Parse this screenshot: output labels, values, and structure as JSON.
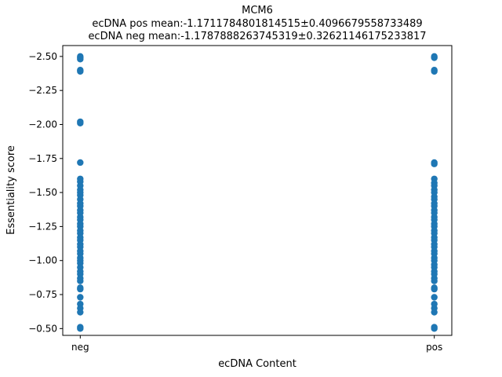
{
  "chart_data": {
    "type": "scatter",
    "title": "MCM6",
    "subtitle_lines": [
      "ecDNA pos mean:-1.1711784801814515±0.4096679558733489",
      "ecDNA neg mean:-1.1787888263745319±0.32621146175233817"
    ],
    "xlabel": "ecDNA Content",
    "ylabel": "Essentiality score",
    "categories": [
      "neg",
      "pos"
    ],
    "ylim": [
      -2.58,
      -0.45
    ],
    "y_inverted": true,
    "yticks": [
      -2.5,
      -2.25,
      -2.0,
      -1.75,
      -1.5,
      -1.25,
      -1.0,
      -0.75,
      -0.5
    ],
    "ytick_labels": [
      "−2.50",
      "−2.25",
      "−2.00",
      "−1.75",
      "−1.50",
      "−1.25",
      "−1.00",
      "−0.75",
      "−0.50"
    ],
    "grid": false,
    "marker_color": "#1f77b4",
    "series": [
      {
        "category": "neg",
        "values": [
          -2.5,
          -2.49,
          -2.48,
          -2.4,
          -2.39,
          -2.02,
          -2.01,
          -1.72,
          -1.6,
          -1.58,
          -1.55,
          -1.52,
          -1.5,
          -1.48,
          -1.45,
          -1.42,
          -1.4,
          -1.37,
          -1.35,
          -1.32,
          -1.3,
          -1.27,
          -1.25,
          -1.22,
          -1.2,
          -1.17,
          -1.15,
          -1.12,
          -1.1,
          -1.07,
          -1.05,
          -1.02,
          -1.0,
          -0.98,
          -0.95,
          -0.92,
          -0.9,
          -0.87,
          -0.85,
          -0.8,
          -0.79,
          -0.73,
          -0.68,
          -0.65,
          -0.62,
          -0.51,
          -0.5
        ]
      },
      {
        "category": "pos",
        "values": [
          -2.5,
          -2.49,
          -2.4,
          -2.39,
          -1.72,
          -1.71,
          -1.6,
          -1.57,
          -1.55,
          -1.52,
          -1.5,
          -1.47,
          -1.45,
          -1.42,
          -1.4,
          -1.37,
          -1.35,
          -1.32,
          -1.3,
          -1.27,
          -1.25,
          -1.22,
          -1.2,
          -1.17,
          -1.15,
          -1.12,
          -1.1,
          -1.07,
          -1.05,
          -1.02,
          -1.0,
          -0.97,
          -0.95,
          -0.92,
          -0.9,
          -0.87,
          -0.85,
          -0.8,
          -0.79,
          -0.73,
          -0.68,
          -0.65,
          -0.62,
          -0.51,
          -0.5
        ]
      }
    ]
  }
}
